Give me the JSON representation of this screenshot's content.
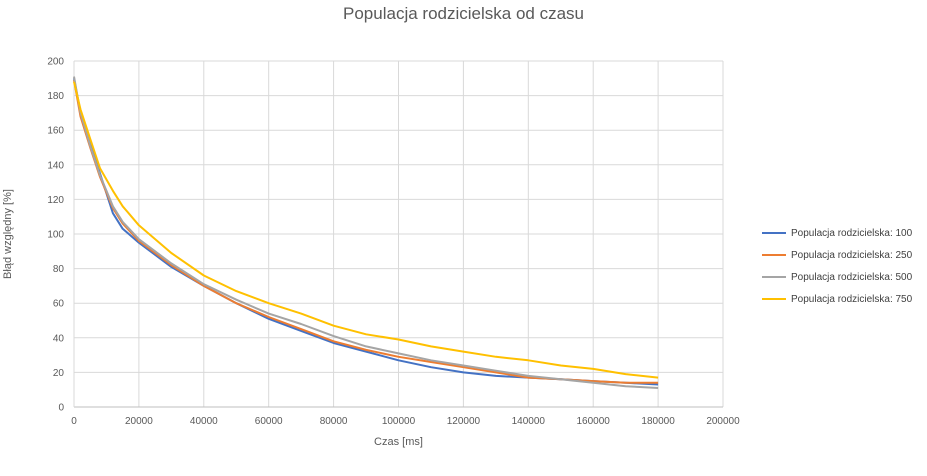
{
  "chart_data": {
    "type": "line",
    "title": "Populacja rodzicielska od czasu",
    "xlabel": "Czas [ms]",
    "ylabel": "Błąd względny [%]",
    "xlim": [
      0,
      200000
    ],
    "ylim": [
      0,
      200
    ],
    "x_ticks": [
      0,
      20000,
      40000,
      60000,
      80000,
      100000,
      120000,
      140000,
      160000,
      180000,
      200000
    ],
    "y_ticks": [
      0,
      20,
      40,
      60,
      80,
      100,
      120,
      140,
      160,
      180,
      200
    ],
    "grid": true,
    "legend_position": "right",
    "series": [
      {
        "name": "Populacja rodzicielska: 100",
        "color": "#4472C4",
        "points": [
          [
            0,
            190
          ],
          [
            2000,
            170
          ],
          [
            5000,
            152
          ],
          [
            8000,
            135
          ],
          [
            12000,
            112
          ],
          [
            15000,
            103
          ],
          [
            20000,
            95
          ],
          [
            30000,
            81
          ],
          [
            40000,
            70
          ],
          [
            50000,
            60
          ],
          [
            60000,
            51
          ],
          [
            70000,
            44
          ],
          [
            80000,
            37
          ],
          [
            90000,
            32
          ],
          [
            100000,
            27
          ],
          [
            110000,
            23
          ],
          [
            120000,
            20
          ],
          [
            130000,
            18
          ],
          [
            140000,
            17
          ],
          [
            150000,
            16
          ],
          [
            160000,
            15
          ],
          [
            170000,
            14
          ],
          [
            180000,
            13
          ]
        ]
      },
      {
        "name": "Populacja rodzicielska: 250",
        "color": "#ED7D31",
        "points": [
          [
            0,
            189
          ],
          [
            2000,
            168
          ],
          [
            5000,
            150
          ],
          [
            8000,
            133
          ],
          [
            12000,
            115
          ],
          [
            15000,
            106
          ],
          [
            20000,
            96
          ],
          [
            30000,
            82
          ],
          [
            40000,
            70
          ],
          [
            50000,
            60
          ],
          [
            60000,
            52
          ],
          [
            70000,
            45
          ],
          [
            80000,
            38
          ],
          [
            90000,
            33
          ],
          [
            100000,
            29
          ],
          [
            110000,
            26
          ],
          [
            120000,
            23
          ],
          [
            130000,
            20
          ],
          [
            140000,
            17
          ],
          [
            150000,
            16
          ],
          [
            160000,
            15
          ],
          [
            170000,
            14
          ],
          [
            180000,
            14
          ]
        ]
      },
      {
        "name": "Populacja rodzicielska: 500",
        "color": "#A5A5A5",
        "points": [
          [
            0,
            191
          ],
          [
            2000,
            170
          ],
          [
            5000,
            151
          ],
          [
            8000,
            134
          ],
          [
            12000,
            116
          ],
          [
            15000,
            107
          ],
          [
            20000,
            97
          ],
          [
            30000,
            83
          ],
          [
            40000,
            71
          ],
          [
            50000,
            62
          ],
          [
            60000,
            54
          ],
          [
            70000,
            48
          ],
          [
            80000,
            41
          ],
          [
            90000,
            35
          ],
          [
            100000,
            31
          ],
          [
            110000,
            27
          ],
          [
            120000,
            24
          ],
          [
            130000,
            21
          ],
          [
            140000,
            18
          ],
          [
            150000,
            16
          ],
          [
            160000,
            14
          ],
          [
            170000,
            12
          ],
          [
            180000,
            11
          ]
        ]
      },
      {
        "name": "Populacja rodzicielska: 750",
        "color": "#FFC000",
        "points": [
          [
            0,
            188
          ],
          [
            2000,
            172
          ],
          [
            5000,
            155
          ],
          [
            8000,
            138
          ],
          [
            12000,
            125
          ],
          [
            15000,
            116
          ],
          [
            20000,
            105
          ],
          [
            30000,
            89
          ],
          [
            40000,
            76
          ],
          [
            50000,
            67
          ],
          [
            60000,
            60
          ],
          [
            70000,
            54
          ],
          [
            80000,
            47
          ],
          [
            90000,
            42
          ],
          [
            100000,
            39
          ],
          [
            110000,
            35
          ],
          [
            120000,
            32
          ],
          [
            130000,
            29
          ],
          [
            140000,
            27
          ],
          [
            150000,
            24
          ],
          [
            160000,
            22
          ],
          [
            170000,
            19
          ],
          [
            180000,
            17
          ]
        ]
      }
    ]
  }
}
